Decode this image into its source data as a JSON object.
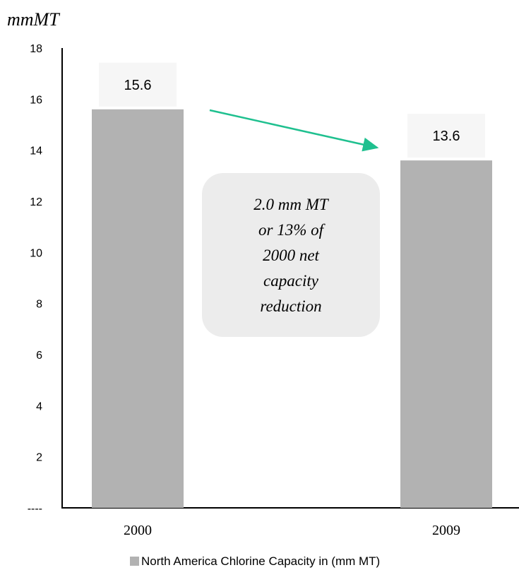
{
  "chart_data": {
    "type": "bar",
    "title": "",
    "ylabel": "mmMT",
    "xlabel": "",
    "categories": [
      "2000",
      "2009"
    ],
    "series": [
      {
        "name": "North America Chlorine Capacity in (mm MT)",
        "values": [
          15.6,
          13.6
        ],
        "color": "#b2b2b2"
      }
    ],
    "data_labels": [
      "15.6",
      "13.6"
    ],
    "ylim": [
      0,
      18
    ],
    "yticks": [
      0,
      2,
      4,
      6,
      8,
      10,
      12,
      14,
      16,
      18
    ],
    "ytick_labels": [
      "----",
      "2",
      "4",
      "6",
      "8",
      "10",
      "12",
      "14",
      "16",
      "18"
    ],
    "grid": false,
    "legend": "bottom",
    "annotation": {
      "lines": [
        "2.0 mm MT",
        "or 13% of",
        "2000 net",
        "capacity",
        "reduction"
      ],
      "arrow_color": "#1fc08f",
      "box_color": "#ececec"
    },
    "label_box_color": "#f6f6f6"
  }
}
